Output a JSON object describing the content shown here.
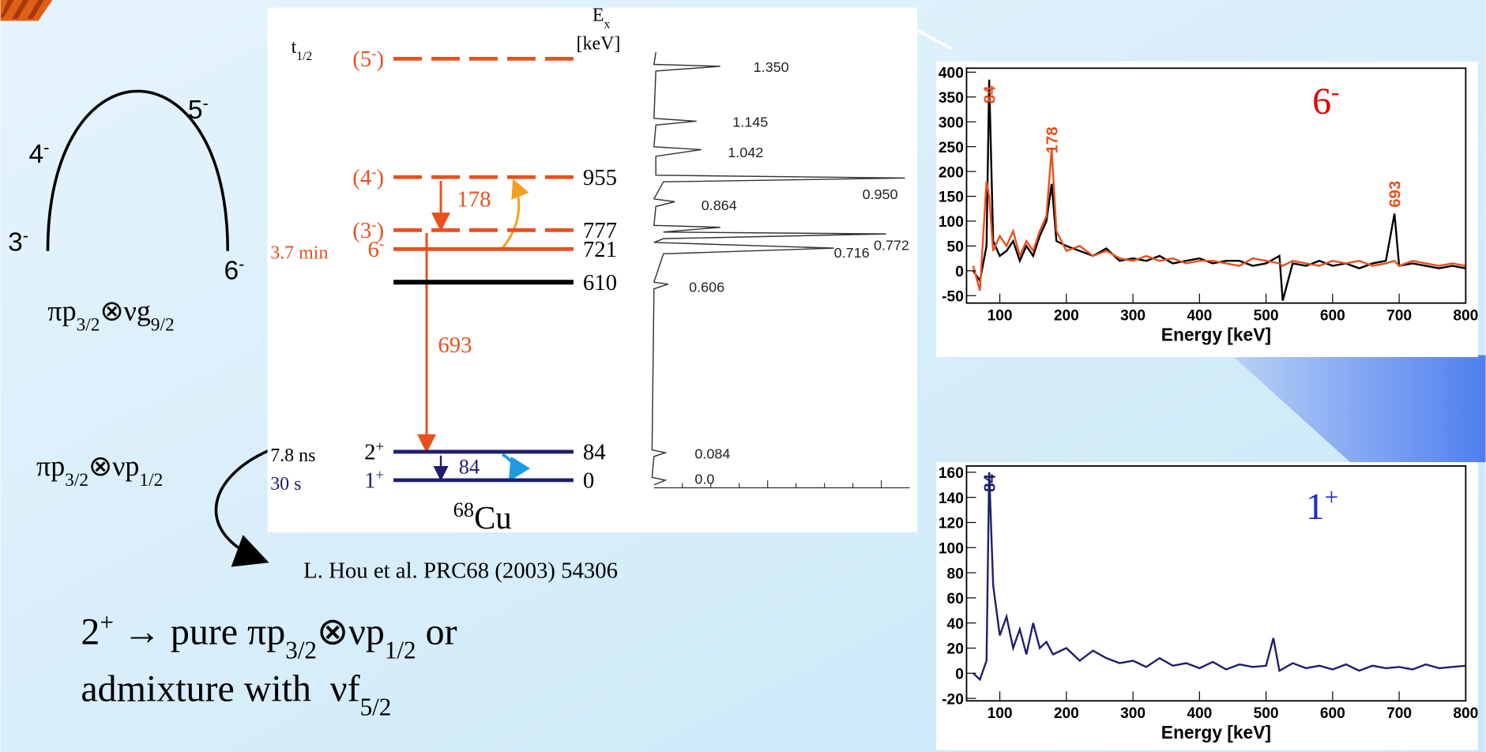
{
  "left": {
    "arc_labels": [
      [
        {
          "text": "4"
        },
        {
          "text": "-",
          "sup": true
        }
      ],
      [
        {
          "text": "5"
        },
        {
          "text": "-",
          "sup": true
        }
      ],
      [
        {
          "text": "3"
        },
        {
          "text": "-",
          "sup": true
        }
      ],
      [
        {
          "text": "6"
        },
        {
          "text": "-",
          "sup": true
        }
      ]
    ],
    "config_g": [
      {
        "text": "πp"
      },
      {
        "text": "3/2",
        "sub": true
      },
      {
        "text": "⊗νg"
      },
      {
        "text": "9/2",
        "sub": true
      }
    ],
    "config_p": [
      {
        "text": "πp"
      },
      {
        "text": "3/2",
        "sub": true
      },
      {
        "text": "⊗νp"
      },
      {
        "text": "1/2",
        "sub": true
      }
    ],
    "reference": "L. Hou et al. PRC68 (2003) 54306",
    "conclusion": [
      [
        {
          "text": "2"
        },
        {
          "text": "+",
          "sup": true
        },
        {
          "text": " → pure πp"
        },
        {
          "text": "3/2",
          "sub": true
        },
        {
          "text": "⊗νp"
        },
        {
          "text": "1/2",
          "sub": true
        },
        {
          "text": " or"
        }
      ],
      [
        {
          "text": "admixture with  νf"
        },
        {
          "text": "5/2",
          "sub": true
        }
      ]
    ]
  },
  "level_scheme": {
    "t_half": [
      {
        "text": "t"
      },
      {
        "text": "1/2",
        "sub": true
      }
    ],
    "ex_header": [
      [
        {
          "text": "E"
        },
        {
          "text": "x",
          "sub": true
        }
      ],
      [
        {
          "text": "[keV]"
        }
      ]
    ],
    "levels": [
      {
        "spin": [
          {
            "text": "(5"
          },
          {
            "text": "-",
            "sup": true
          },
          {
            "text": ")"
          }
        ],
        "color": "#e8501e",
        "dashed": true
      },
      {
        "spin": [
          {
            "text": "(4"
          },
          {
            "text": "-",
            "sup": true
          },
          {
            "text": ")"
          }
        ],
        "energy": "955",
        "color": "#e8501e",
        "dashed": true
      },
      {
        "spin": [
          {
            "text": "(3"
          },
          {
            "text": "-",
            "sup": true
          },
          {
            "text": ")"
          }
        ],
        "energy": "777",
        "color": "#e8501e",
        "dashed": true
      },
      {
        "spin": [
          {
            "text": "6"
          },
          {
            "text": "-",
            "sup": true
          }
        ],
        "energy": "721",
        "half_life": "3.7 min",
        "color": "#e8501e",
        "dashed": false
      },
      {
        "energy": "610",
        "color": "#000000",
        "dashed": false
      },
      {
        "spin": [
          {
            "text": "2"
          },
          {
            "text": "+",
            "sup": true
          }
        ],
        "energy": "84",
        "half_life": "7.8 ns",
        "color": "#1f1f6e",
        "text_color": "#000000",
        "dashed": false
      },
      {
        "spin": [
          {
            "text": "1"
          },
          {
            "text": "+",
            "sup": true
          }
        ],
        "energy": "0",
        "half_life": "30 s",
        "color": "#1f1f6e",
        "dashed": false
      }
    ],
    "transitions": [
      "178",
      "693",
      "84"
    ],
    "nucleus": [
      {
        "text": "68",
        "sup": true
      },
      {
        "text": "Cu"
      }
    ],
    "spectrum_labels": [
      "1.350",
      "1.145",
      "1.042",
      "0.950",
      "0.864",
      "0.772",
      "0.716",
      "0.606",
      "0.084",
      "0.0"
    ]
  },
  "chart_data": [
    {
      "type": "line",
      "label": [
        {
          "text": "6"
        },
        {
          "text": "-",
          "sup": true
        }
      ],
      "label_color": "#e00000",
      "x_label": "Energy [keV]",
      "x": [
        60,
        70,
        80,
        84,
        90,
        100,
        110,
        120,
        130,
        140,
        150,
        160,
        170,
        178,
        185,
        200,
        220,
        240,
        260,
        280,
        300,
        320,
        340,
        360,
        380,
        400,
        420,
        440,
        460,
        480,
        500,
        520,
        525,
        540,
        560,
        580,
        600,
        620,
        640,
        660,
        680,
        693,
        700,
        720,
        740,
        760,
        780,
        800
      ],
      "series": [
        {
          "color": "#000000",
          "values": [
            0,
            -20,
            50,
            385,
            60,
            30,
            40,
            60,
            20,
            50,
            30,
            70,
            100,
            175,
            60,
            50,
            40,
            30,
            45,
            20,
            25,
            20,
            30,
            15,
            20,
            25,
            15,
            20,
            20,
            10,
            15,
            30,
            -60,
            15,
            10,
            20,
            10,
            15,
            5,
            15,
            20,
            115,
            10,
            15,
            10,
            5,
            10,
            5
          ]
        },
        {
          "color": "#e8501e",
          "values": [
            10,
            -40,
            180,
            150,
            40,
            70,
            50,
            80,
            30,
            60,
            40,
            80,
            110,
            245,
            80,
            40,
            50,
            30,
            40,
            25,
            20,
            30,
            20,
            25,
            15,
            20,
            20,
            15,
            10,
            25,
            20,
            15,
            10,
            20,
            15,
            10,
            20,
            15,
            20,
            10,
            15,
            20,
            10,
            20,
            15,
            10,
            15,
            10
          ]
        }
      ],
      "peak_labels": [
        {
          "text": "84",
          "x": 84
        },
        {
          "text": "178",
          "x": 178
        },
        {
          "text": "693",
          "x": 693
        }
      ],
      "peak_color": "#e8501e",
      "xlim": [
        50,
        800
      ],
      "xticks": [
        100,
        200,
        300,
        400,
        500,
        600,
        700,
        800
      ],
      "ylim": [
        -65,
        408
      ],
      "yticks": [
        -50,
        0,
        50,
        100,
        150,
        200,
        250,
        300,
        350,
        400
      ]
    },
    {
      "type": "line",
      "label": [
        {
          "text": "1"
        },
        {
          "text": "+",
          "sup": true
        }
      ],
      "label_color": "#1a2fc0",
      "x_label": "Energy [keV]",
      "x": [
        60,
        70,
        80,
        84,
        90,
        100,
        110,
        120,
        130,
        140,
        150,
        160,
        170,
        180,
        200,
        220,
        240,
        260,
        280,
        300,
        320,
        340,
        360,
        380,
        400,
        420,
        440,
        460,
        480,
        500,
        511,
        520,
        540,
        560,
        580,
        600,
        620,
        640,
        660,
        680,
        700,
        720,
        740,
        760,
        780,
        800
      ],
      "series": [
        {
          "color": "#1f1f6e",
          "values": [
            0,
            -5,
            10,
            160,
            70,
            30,
            45,
            20,
            35,
            15,
            40,
            20,
            25,
            15,
            20,
            10,
            18,
            12,
            8,
            10,
            5,
            12,
            6,
            8,
            4,
            9,
            3,
            7,
            5,
            6,
            28,
            2,
            8,
            4,
            6,
            3,
            7,
            2,
            6,
            4,
            5,
            3,
            7,
            4,
            5,
            6
          ]
        }
      ],
      "peak_labels": [
        {
          "text": "84",
          "x": 84
        }
      ],
      "peak_color": "#1f1f6e",
      "xlim": [
        50,
        800
      ],
      "xticks": [
        100,
        200,
        300,
        400,
        500,
        600,
        700,
        800
      ],
      "ylim": [
        -22,
        165
      ],
      "yticks": [
        -20,
        0,
        20,
        40,
        60,
        80,
        100,
        120,
        140,
        160
      ]
    }
  ]
}
